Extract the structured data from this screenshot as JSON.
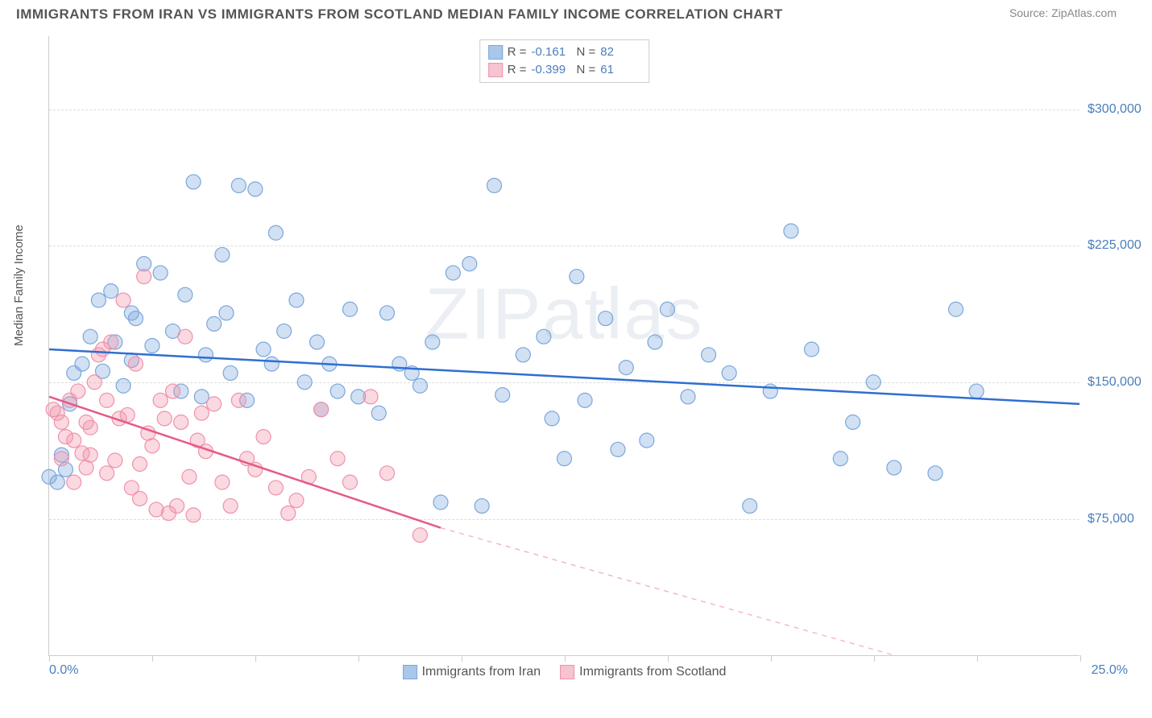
{
  "header": {
    "title": "IMMIGRANTS FROM IRAN VS IMMIGRANTS FROM SCOTLAND MEDIAN FAMILY INCOME CORRELATION CHART",
    "source": "Source: ZipAtlas.com"
  },
  "watermark": "ZIPatlas",
  "chart": {
    "type": "scatter",
    "ylabel": "Median Family Income",
    "xlim": [
      0,
      25
    ],
    "ylim": [
      0,
      340000
    ],
    "x_tick_positions": [
      0,
      2.5,
      5,
      7.5,
      10,
      12.5,
      15,
      17.5,
      20,
      22.5,
      25
    ],
    "x_tick_labels": {
      "first": "0.0%",
      "last": "25.0%"
    },
    "y_gridlines": [
      75000,
      150000,
      225000,
      300000
    ],
    "y_tick_labels": [
      "$75,000",
      "$150,000",
      "$225,000",
      "$300,000"
    ],
    "background_color": "#ffffff",
    "grid_color": "#dddddd",
    "axis_color": "#cccccc",
    "tick_label_color": "#4a7ebb",
    "series": [
      {
        "name": "Immigrants from Iran",
        "color_fill": "rgba(122,167,220,0.35)",
        "color_stroke": "#7aa7dc",
        "marker_radius": 9,
        "R": "-0.161",
        "N": "82",
        "trendline": {
          "x1": 0,
          "y1": 168000,
          "x2": 25,
          "y2": 138000,
          "stroke": "#2f6fd0",
          "width": 2.5,
          "dash": "none"
        },
        "points": [
          [
            0.3,
            110000
          ],
          [
            0.4,
            102000
          ],
          [
            0.2,
            95000
          ],
          [
            0.0,
            98000
          ],
          [
            0.6,
            155000
          ],
          [
            0.8,
            160000
          ],
          [
            1.0,
            175000
          ],
          [
            1.2,
            195000
          ],
          [
            1.5,
            200000
          ],
          [
            1.6,
            172000
          ],
          [
            1.8,
            148000
          ],
          [
            2.0,
            162000
          ],
          [
            2.1,
            185000
          ],
          [
            2.3,
            215000
          ],
          [
            2.5,
            170000
          ],
          [
            2.7,
            210000
          ],
          [
            3.0,
            178000
          ],
          [
            3.2,
            145000
          ],
          [
            3.3,
            198000
          ],
          [
            3.5,
            260000
          ],
          [
            3.8,
            165000
          ],
          [
            4.0,
            182000
          ],
          [
            4.2,
            220000
          ],
          [
            4.4,
            155000
          ],
          [
            4.6,
            258000
          ],
          [
            4.8,
            140000
          ],
          [
            5.0,
            256000
          ],
          [
            5.2,
            168000
          ],
          [
            5.5,
            232000
          ],
          [
            5.7,
            178000
          ],
          [
            6.0,
            195000
          ],
          [
            6.2,
            150000
          ],
          [
            6.5,
            172000
          ],
          [
            6.8,
            160000
          ],
          [
            7.0,
            145000
          ],
          [
            7.3,
            190000
          ],
          [
            7.5,
            142000
          ],
          [
            8.0,
            133000
          ],
          [
            8.2,
            188000
          ],
          [
            8.5,
            160000
          ],
          [
            9.0,
            148000
          ],
          [
            9.3,
            172000
          ],
          [
            9.5,
            84000
          ],
          [
            9.8,
            210000
          ],
          [
            10.2,
            215000
          ],
          [
            10.5,
            82000
          ],
          [
            10.8,
            258000
          ],
          [
            11.0,
            143000
          ],
          [
            11.5,
            165000
          ],
          [
            12.0,
            175000
          ],
          [
            12.5,
            108000
          ],
          [
            12.8,
            208000
          ],
          [
            13.0,
            140000
          ],
          [
            13.5,
            185000
          ],
          [
            13.8,
            113000
          ],
          [
            14.0,
            158000
          ],
          [
            14.5,
            118000
          ],
          [
            15.0,
            190000
          ],
          [
            15.5,
            142000
          ],
          [
            16.0,
            165000
          ],
          [
            16.5,
            155000
          ],
          [
            17.0,
            82000
          ],
          [
            17.5,
            145000
          ],
          [
            18.0,
            233000
          ],
          [
            18.5,
            168000
          ],
          [
            19.2,
            108000
          ],
          [
            19.5,
            128000
          ],
          [
            20.0,
            150000
          ],
          [
            20.5,
            103000
          ],
          [
            21.5,
            100000
          ],
          [
            22.0,
            190000
          ],
          [
            22.5,
            145000
          ],
          [
            0.5,
            138000
          ],
          [
            1.3,
            156000
          ],
          [
            2.0,
            188000
          ],
          [
            3.7,
            142000
          ],
          [
            4.3,
            188000
          ],
          [
            5.4,
            160000
          ],
          [
            6.6,
            135000
          ],
          [
            8.8,
            155000
          ],
          [
            12.2,
            130000
          ],
          [
            14.7,
            172000
          ]
        ]
      },
      {
        "name": "Immigrants from Scotland",
        "color_fill": "rgba(240,145,170,0.35)",
        "color_stroke": "#f091aa",
        "marker_radius": 9,
        "R": "-0.399",
        "N": "61",
        "trendline_solid": {
          "x1": 0,
          "y1": 142000,
          "x2": 9.5,
          "y2": 70000,
          "stroke": "#e55b87",
          "width": 2.5
        },
        "trendline_dash": {
          "x1": 9.5,
          "y1": 70000,
          "x2": 20.5,
          "y2": 0,
          "stroke": "#f3b8c9",
          "width": 1.5
        },
        "points": [
          [
            0.2,
            133000
          ],
          [
            0.3,
            128000
          ],
          [
            0.4,
            120000
          ],
          [
            0.1,
            135000
          ],
          [
            0.5,
            140000
          ],
          [
            0.6,
            118000
          ],
          [
            0.7,
            145000
          ],
          [
            0.8,
            111000
          ],
          [
            0.9,
            103000
          ],
          [
            1.0,
            125000
          ],
          [
            1.1,
            150000
          ],
          [
            1.2,
            165000
          ],
          [
            1.3,
            168000
          ],
          [
            1.4,
            100000
          ],
          [
            1.5,
            172000
          ],
          [
            1.6,
            107000
          ],
          [
            1.7,
            130000
          ],
          [
            1.8,
            195000
          ],
          [
            1.9,
            132000
          ],
          [
            2.0,
            92000
          ],
          [
            2.1,
            160000
          ],
          [
            2.2,
            86000
          ],
          [
            2.3,
            208000
          ],
          [
            2.4,
            122000
          ],
          [
            2.5,
            115000
          ],
          [
            2.6,
            80000
          ],
          [
            2.7,
            140000
          ],
          [
            2.8,
            130000
          ],
          [
            2.9,
            78000
          ],
          [
            3.0,
            145000
          ],
          [
            3.1,
            82000
          ],
          [
            3.2,
            128000
          ],
          [
            3.3,
            175000
          ],
          [
            3.4,
            98000
          ],
          [
            3.5,
            77000
          ],
          [
            3.6,
            118000
          ],
          [
            3.7,
            133000
          ],
          [
            3.8,
            112000
          ],
          [
            4.0,
            138000
          ],
          [
            4.2,
            95000
          ],
          [
            4.4,
            82000
          ],
          [
            4.6,
            140000
          ],
          [
            4.8,
            108000
          ],
          [
            5.0,
            102000
          ],
          [
            5.2,
            120000
          ],
          [
            5.5,
            92000
          ],
          [
            5.8,
            78000
          ],
          [
            6.0,
            85000
          ],
          [
            6.3,
            98000
          ],
          [
            6.6,
            135000
          ],
          [
            7.0,
            108000
          ],
          [
            7.3,
            95000
          ],
          [
            7.8,
            142000
          ],
          [
            8.2,
            100000
          ],
          [
            9.0,
            66000
          ],
          [
            1.0,
            110000
          ],
          [
            1.4,
            140000
          ],
          [
            2.2,
            105000
          ],
          [
            0.3,
            108000
          ],
          [
            0.6,
            95000
          ],
          [
            0.9,
            128000
          ]
        ]
      }
    ],
    "legend_bottom": [
      {
        "label": "Immigrants from Iran",
        "fill": "#a9c7eb",
        "stroke": "#7aa7dc"
      },
      {
        "label": "Immigrants from Scotland",
        "fill": "#f5c3d1",
        "stroke": "#f091aa"
      }
    ]
  }
}
